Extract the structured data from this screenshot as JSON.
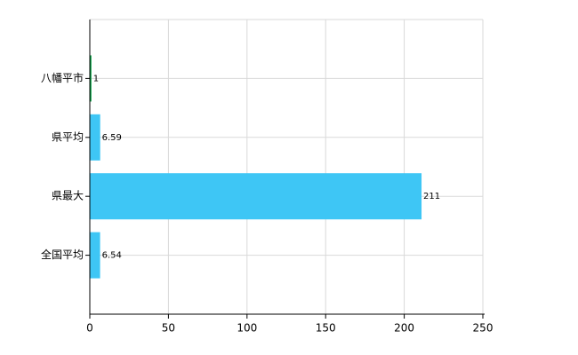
{
  "chart_data": {
    "type": "barh",
    "categories": [
      "八幡平市",
      "県平均",
      "県最大",
      "全国平均"
    ],
    "values": [
      1,
      6.59,
      211,
      6.54
    ],
    "colors": [
      "#00a040",
      "#3ec6f5",
      "#3ec6f5",
      "#3ec6f5"
    ],
    "xlim": [
      0,
      250
    ],
    "xticks": [
      0,
      50,
      100,
      150,
      200,
      250
    ],
    "grid": true
  }
}
